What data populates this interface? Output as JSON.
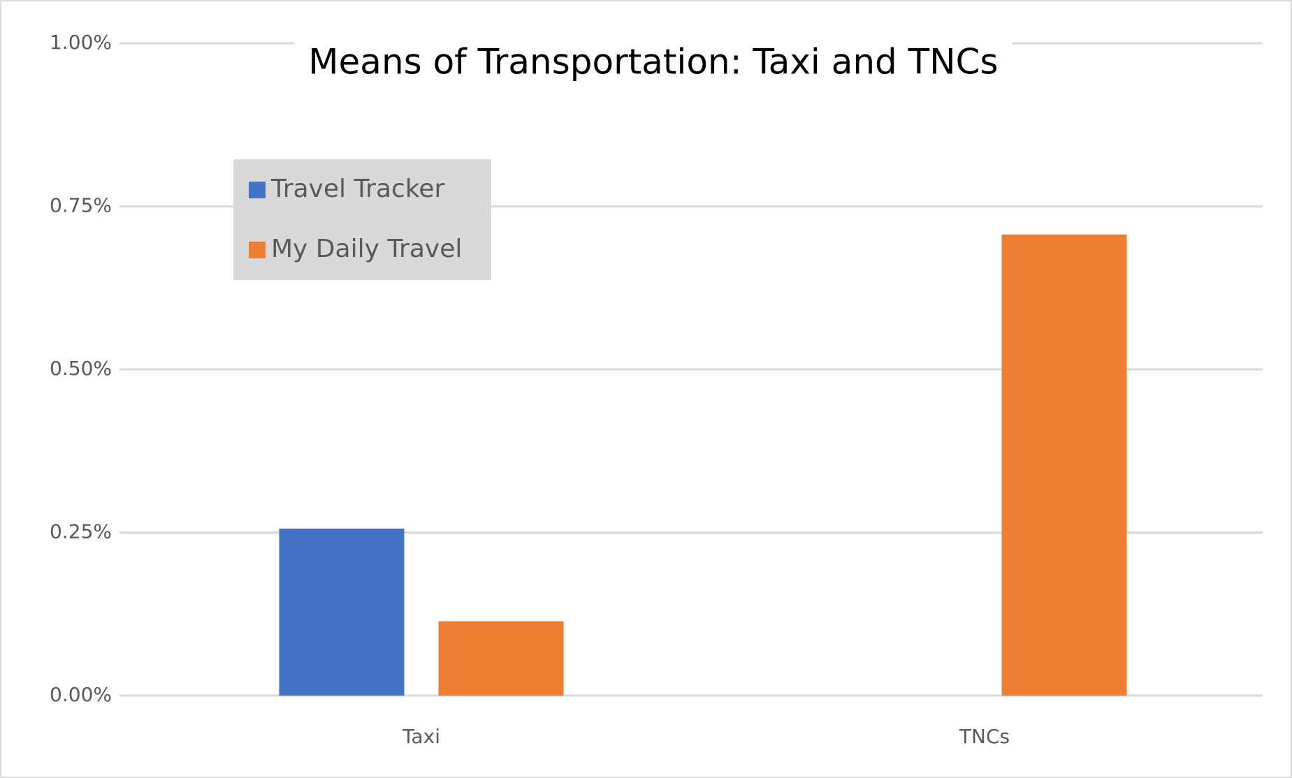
{
  "chart_data": {
    "type": "bar",
    "title": "Means of Transportation: Taxi and TNCs",
    "categories": [
      "Taxi",
      "TNCs"
    ],
    "series": [
      {
        "name": "Travel Tracker",
        "color": "#4472c4",
        "values": [
          0.256,
          null
        ]
      },
      {
        "name": "My Daily Travel",
        "color": "#ed7d31",
        "values": [
          0.114,
          0.707
        ]
      }
    ],
    "ylim": [
      0,
      1
    ],
    "yticks": [
      {
        "value": 0,
        "label": "0.00%"
      },
      {
        "value": 0.25,
        "label": "0.25%"
      },
      {
        "value": 0.5,
        "label": "0.50%"
      },
      {
        "value": 0.75,
        "label": "0.75%"
      },
      {
        "value": 1,
        "label": "1.00%"
      }
    ],
    "grid": true
  }
}
